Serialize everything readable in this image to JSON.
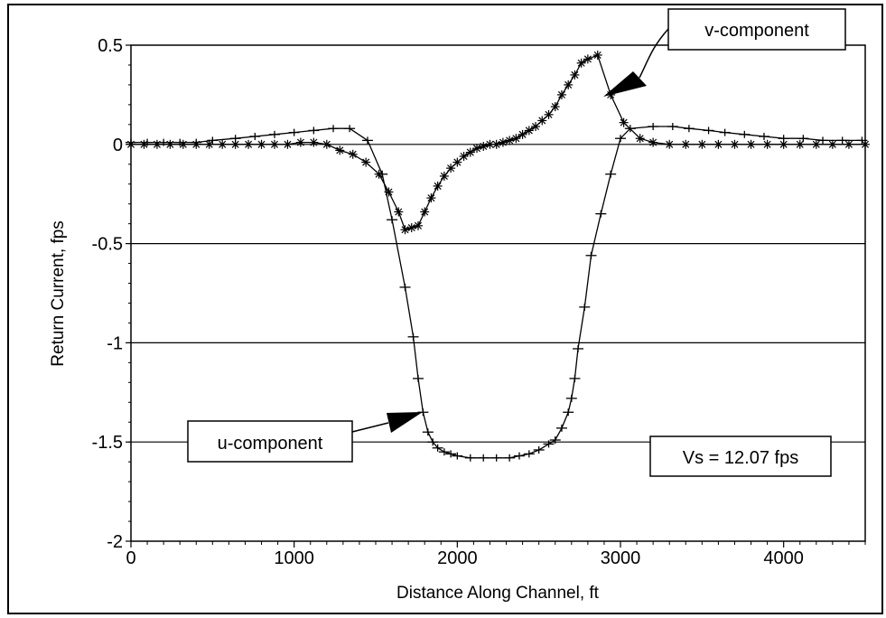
{
  "chart_data": {
    "type": "line",
    "title": "",
    "xlabel": "Distance Along Channel, ft",
    "ylabel": "Return Current, fps",
    "xlim": [
      0,
      4500
    ],
    "ylim": [
      -2,
      0.5
    ],
    "xticks": [
      0,
      1000,
      2000,
      3000,
      4000
    ],
    "xtick_labels": [
      "0",
      "1000",
      "2000",
      "3000",
      "4000"
    ],
    "yticks": [
      0.5,
      0,
      -0.5,
      -1,
      -1.5,
      -2
    ],
    "ytick_labels": [
      "0.5",
      "0",
      "-0.5",
      "-1",
      "-1.5",
      "-2"
    ],
    "gridlines_y": [
      0,
      -0.5,
      -1,
      -1.5
    ],
    "grid": "horizontal",
    "series": [
      {
        "name": "u-component",
        "marker": "plus",
        "x": [
          0,
          100,
          200,
          300,
          400,
          500,
          640,
          760,
          880,
          1000,
          1120,
          1240,
          1340,
          1450,
          1540,
          1600,
          1680,
          1730,
          1760,
          1790,
          1820,
          1850,
          1880,
          1920,
          1960,
          2000,
          2080,
          2160,
          2240,
          2320,
          2380,
          2440,
          2500,
          2560,
          2600,
          2640,
          2680,
          2700,
          2720,
          2740,
          2780,
          2820,
          2880,
          2940,
          3000,
          3060,
          3200,
          3320,
          3420,
          3540,
          3640,
          3760,
          3880,
          4000,
          4120,
          4240,
          4360,
          4480
        ],
        "y": [
          0.01,
          0.01,
          0.01,
          0.01,
          0.01,
          0.02,
          0.03,
          0.04,
          0.05,
          0.06,
          0.07,
          0.08,
          0.08,
          0.02,
          -0.15,
          -0.38,
          -0.72,
          -0.97,
          -1.18,
          -1.35,
          -1.45,
          -1.5,
          -1.53,
          -1.55,
          -1.56,
          -1.57,
          -1.58,
          -1.58,
          -1.58,
          -1.58,
          -1.57,
          -1.56,
          -1.54,
          -1.51,
          -1.49,
          -1.43,
          -1.35,
          -1.28,
          -1.18,
          -1.03,
          -0.82,
          -0.56,
          -0.35,
          -0.15,
          0.03,
          0.08,
          0.09,
          0.09,
          0.08,
          0.07,
          0.06,
          0.05,
          0.04,
          0.03,
          0.03,
          0.02,
          0.02,
          0.02
        ]
      },
      {
        "name": "v-component",
        "marker": "asterisk",
        "x": [
          0,
          80,
          160,
          240,
          320,
          400,
          480,
          560,
          640,
          720,
          800,
          880,
          960,
          1040,
          1120,
          1200,
          1280,
          1360,
          1440,
          1520,
          1580,
          1640,
          1680,
          1720,
          1760,
          1800,
          1840,
          1880,
          1920,
          1960,
          2000,
          2040,
          2080,
          2120,
          2160,
          2200,
          2240,
          2280,
          2320,
          2360,
          2400,
          2440,
          2480,
          2520,
          2560,
          2600,
          2640,
          2680,
          2720,
          2760,
          2800,
          2860,
          2940,
          3020,
          3120,
          3200,
          3300,
          3400,
          3500,
          3600,
          3700,
          3800,
          3900,
          4000,
          4100,
          4200,
          4300,
          4400,
          4500
        ],
        "y": [
          0.0,
          0.0,
          0.0,
          0.0,
          0.0,
          0.0,
          0.0,
          0.0,
          0.0,
          0.0,
          0.0,
          0.0,
          0.0,
          0.01,
          0.01,
          0.0,
          -0.03,
          -0.05,
          -0.09,
          -0.15,
          -0.24,
          -0.34,
          -0.43,
          -0.42,
          -0.41,
          -0.34,
          -0.27,
          -0.21,
          -0.16,
          -0.12,
          -0.09,
          -0.06,
          -0.04,
          -0.02,
          -0.01,
          0.0,
          0.0,
          0.01,
          0.02,
          0.03,
          0.05,
          0.07,
          0.09,
          0.12,
          0.15,
          0.19,
          0.25,
          0.3,
          0.35,
          0.41,
          0.43,
          0.45,
          0.25,
          0.11,
          0.03,
          0.01,
          0.0,
          0.0,
          0.0,
          0.0,
          0.0,
          0.0,
          0.0,
          0.0,
          0.0,
          0.0,
          0.0,
          0.0,
          0.0
        ]
      }
    ],
    "annotations": [
      {
        "text": "v-component",
        "points_to": {
          "x": 2970,
          "y": 0.24
        }
      },
      {
        "text": "u-component",
        "points_to": {
          "x": 1820,
          "y": -1.33
        }
      },
      {
        "text": "Vs = 12.07 fps"
      }
    ]
  }
}
